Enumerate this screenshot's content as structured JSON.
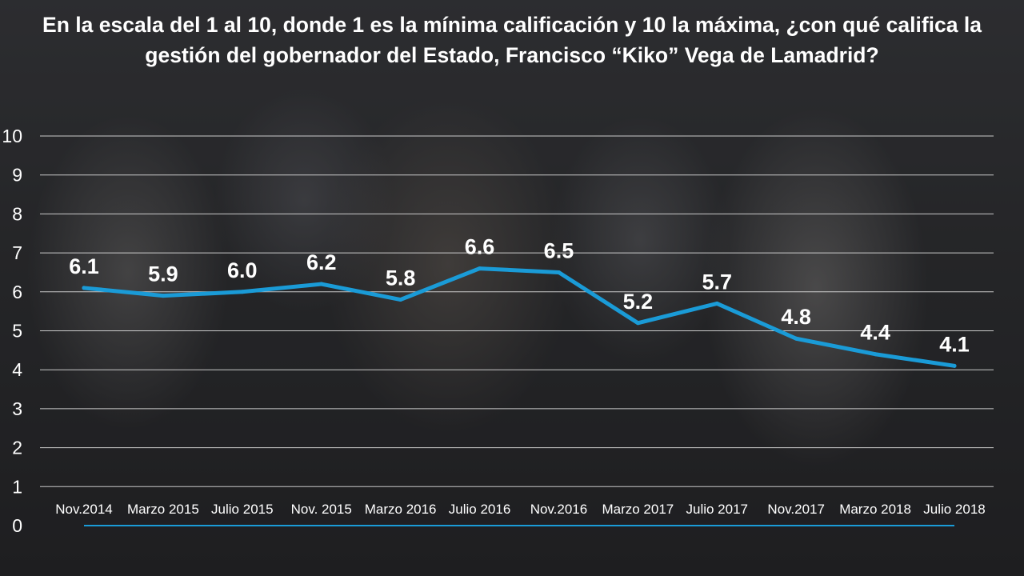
{
  "title": "En la escala del 1 al 10, donde 1 es la mínima calificación y 10 la máxima, ¿con qué califica la gestión del gobernador del Estado, Francisco “Kiko” Vega de Lamadrid?",
  "colors": {
    "line": "#1a9bd7",
    "grid": "#e6e6e6",
    "text": "#ffffff"
  },
  "chart_data": {
    "type": "line",
    "title": "En la escala del 1 al 10, donde 1 es la mínima calificación y 10 la máxima, ¿con qué califica la gestión del gobernador del Estado, Francisco “Kiko” Vega de Lamadrid?",
    "categories": [
      "Nov.2014",
      "Marzo 2015",
      "Julio 2015",
      "Nov. 2015",
      "Marzo 2016",
      "Julio 2016",
      "Nov.2016",
      "Marzo 2017",
      "Julio 2017",
      "Nov.2017",
      "Marzo 2018",
      "Julio 2018"
    ],
    "series": [
      {
        "values": [
          6.1,
          5.9,
          6.0,
          6.2,
          5.8,
          6.6,
          6.5,
          5.2,
          5.7,
          4.8,
          4.4,
          4.1
        ]
      }
    ],
    "data_labels": [
      "6.1",
      "5.9",
      "6.0",
      "6.2",
      "5.8",
      "6.6",
      "6.5",
      "5.2",
      "5.7",
      "4.8",
      "4.4",
      "4.1"
    ],
    "y_ticks": [
      "0",
      "1",
      "2",
      "3",
      "4",
      "5",
      "6",
      "7",
      "8",
      "9",
      "10"
    ],
    "ylim": [
      0,
      10
    ],
    "grid": true,
    "legend": "none"
  }
}
